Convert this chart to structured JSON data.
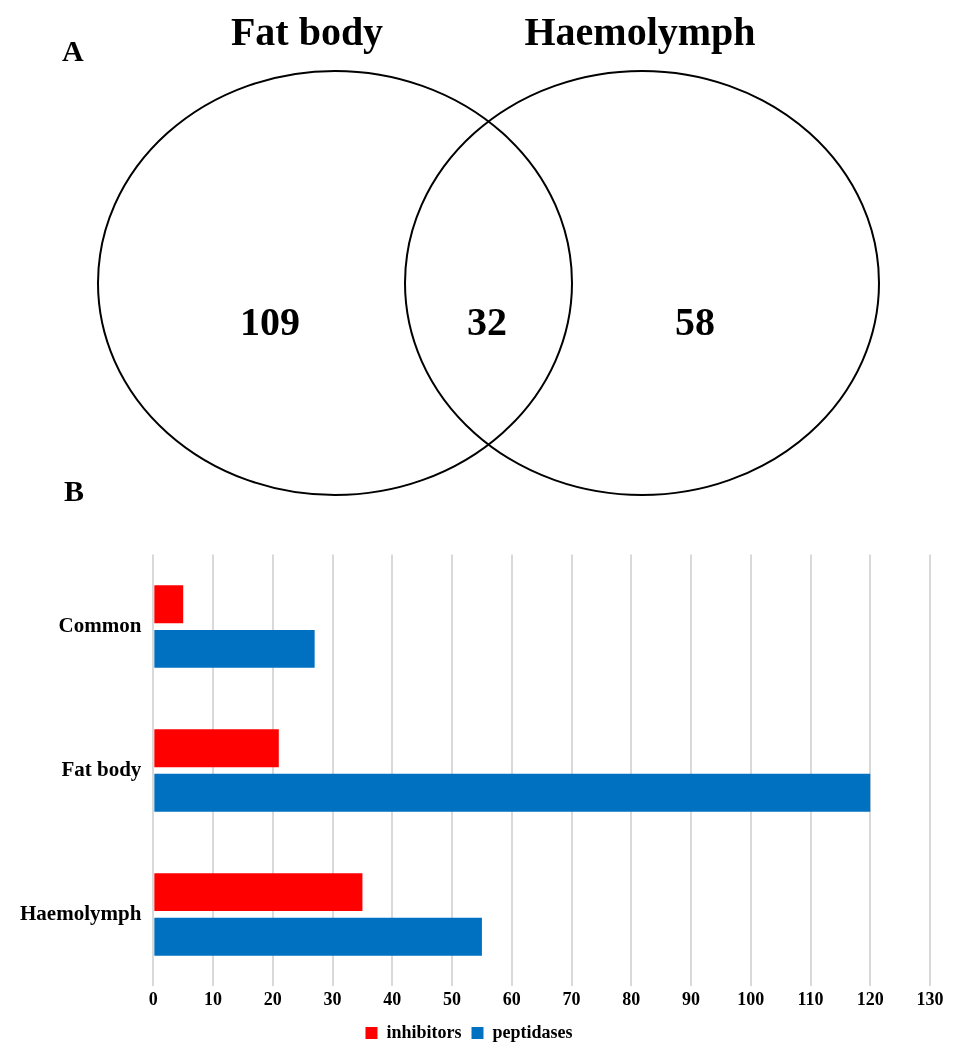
{
  "chart_data": [
    {
      "type": "other",
      "title": "A",
      "categories": [
        null,
        null,
        null
      ],
      "values": [
        109,
        32,
        58
      ],
      "data_labels": true,
      "annotations": [
        "Fat body",
        "Haemolymph"
      ]
    },
    {
      "type": "bar",
      "title": "B",
      "orientation": "horizontal",
      "categories": [
        "Common",
        "Fat body",
        "Haemolymph"
      ],
      "series": [
        {
          "name": "inhibitors",
          "color": "#ff0000",
          "values": [
            5,
            21,
            35
          ]
        },
        {
          "name": "peptidases",
          "color": "#0070c0",
          "values": [
            27,
            120,
            55
          ]
        }
      ],
      "xlim": [
        0,
        130
      ],
      "xticks": [
        0,
        10,
        20,
        30,
        40,
        50,
        60,
        70,
        80,
        90,
        100,
        110,
        120,
        130
      ],
      "grid": "x",
      "legend": "bottom"
    }
  ]
}
